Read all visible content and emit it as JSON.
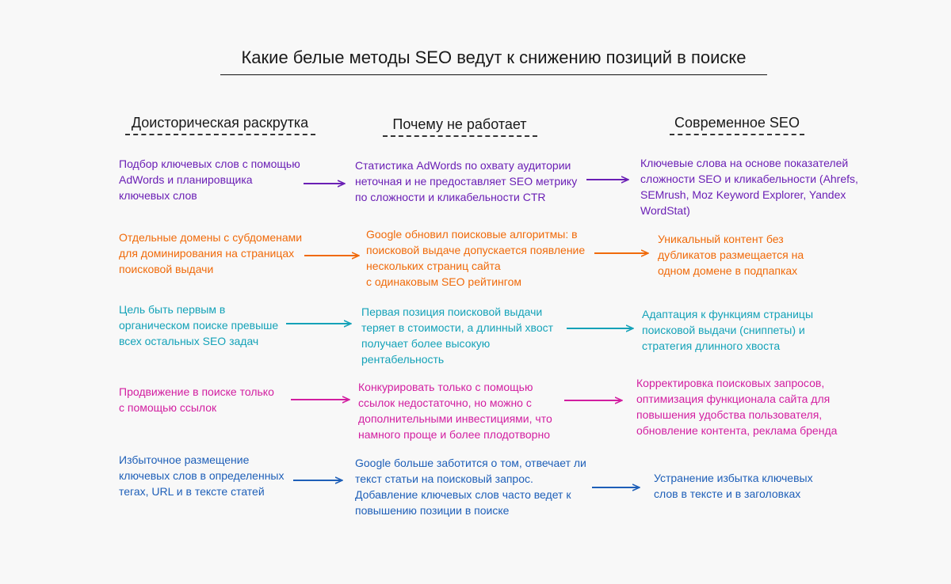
{
  "title": "Какие белые методы SEO ведут к снижению позиций в поиске",
  "columns": [
    "Доисторическая раскрутка",
    "Почему не работает",
    "Современное SEO"
  ],
  "colors": {
    "row1": "#6a1fb5",
    "row2": "#f06a0a",
    "row3": "#14a2b8",
    "row4": "#d21ea0",
    "row5": "#1e5fb8"
  },
  "rows": [
    {
      "old": "Подбор ключевых слов с помощью\nAdWords и планировщика\nключевых слов",
      "why": "Статистика AdWords по охвату аудитории\nнеточная и не предоставляет SEO метрику\nпо сложности и кликабельности CTR",
      "modern": "Ключевые слова на основе показателей\nсложности SEO и кликабельности (Ahrefs,\nSEMrush, Moz Keyword Explorer, Yandex\nWordStat)"
    },
    {
      "old": "Отдельные домены с субдоменами\nдля доминирования на страницах\nпоисковой выдачи",
      "why": "Google обновил поисковые алгоритмы: в\nпоисковой выдаче допускается появление\nнескольких страниц сайта\nс одинаковым SEO рейтингом",
      "modern": "Уникальный контент без\nдубликатов размещается на\nодном домене в подпапках"
    },
    {
      "old": "Цель быть первым в\nорганическом поиске превыше\nвсех остальных SEO задач",
      "why": "Первая позиция поисковой выдачи\nтеряет в стоимости, а длинный хвост\nполучает более высокую\nрентабельность",
      "modern": "Адаптация к функциям страницы\nпоисковой выдачи (сниппеты) и\nстратегия длинного хвоста"
    },
    {
      "old": "Продвижение в поиске только\nс помощью ссылок",
      "why": "Конкурировать только с помощью\nссылок недостаточно, но можно с\nдополнительными инвестициями, что\nнамного проще и более плодотворно",
      "modern": "Корректировка поисковых запросов,\nоптимизация функционала сайта для\nповышения удобства пользователя,\nобновление контента, реклама бренда"
    },
    {
      "old": "Избыточное размещение\nключевых слов в определенных\nтегах, URL и в тексте статей",
      "why": "Google больше заботится о том, отвечает ли\nтекст статьи на поисковый запрос.\nДобавление ключевых слов часто ведет к\nповышению позиции в поиске",
      "modern": "Устранение избытка ключевых\nслов в тексте и в заголовках"
    }
  ]
}
